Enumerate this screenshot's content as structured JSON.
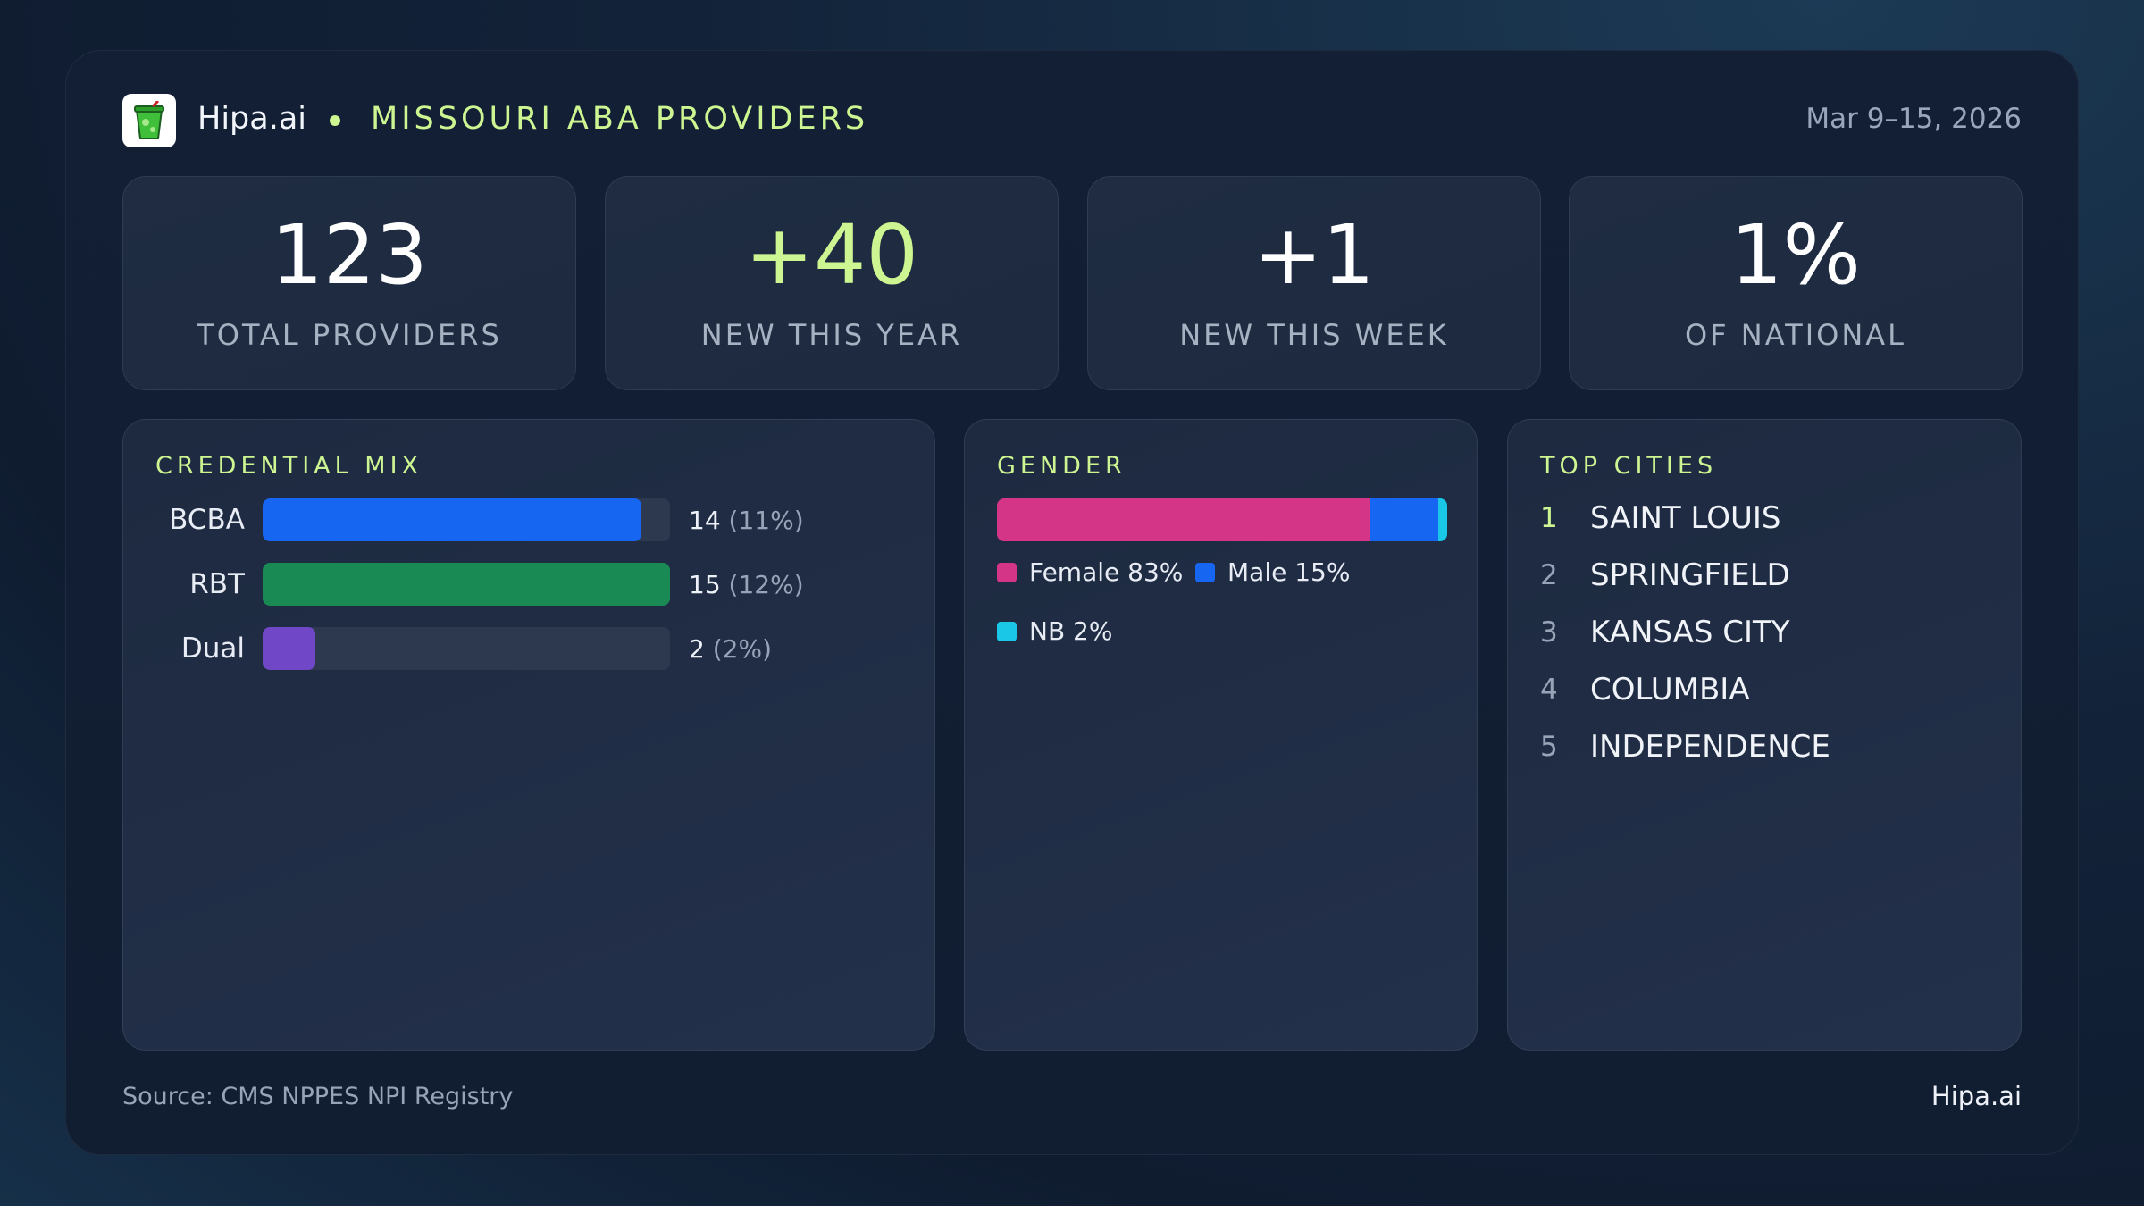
{
  "header": {
    "brand": "Hipa.ai",
    "title": "MISSOURI ABA PROVIDERS",
    "date_range": "Mar 9–15, 2026",
    "logo_icon": "drink-cup-icon"
  },
  "stats": [
    {
      "value": "123",
      "label": "TOTAL PROVIDERS",
      "accent": false
    },
    {
      "value": "+40",
      "label": "NEW THIS YEAR",
      "accent": true
    },
    {
      "value": "+1",
      "label": "NEW THIS WEEK",
      "accent": false
    },
    {
      "value": "1%",
      "label": "OF NATIONAL",
      "accent": false
    }
  ],
  "credential_mix": {
    "title": "CREDENTIAL MIX",
    "rows": [
      {
        "label": "BCBA",
        "count": "14",
        "pct": "(11%)",
        "fill_fraction": 0.93,
        "color": "#1766f2"
      },
      {
        "label": "RBT",
        "count": "15",
        "pct": "(12%)",
        "fill_fraction": 1.0,
        "color": "#1a8a54"
      },
      {
        "label": "Dual",
        "count": "2",
        "pct": "(2%)",
        "fill_fraction": 0.13,
        "color": "#7048c7"
      }
    ]
  },
  "gender": {
    "title": "GENDER",
    "segments": [
      {
        "name": "Female",
        "label": "Female 83%",
        "share": 83,
        "color": "#d43587"
      },
      {
        "name": "Male",
        "label": "Male 15%",
        "share": 15,
        "color": "#1766f2"
      },
      {
        "name": "NB",
        "label": "NB 2%",
        "share": 2,
        "color": "#1ac7e6"
      }
    ]
  },
  "top_cities": {
    "title": "TOP CITIES",
    "cities": [
      {
        "rank": "1",
        "name": "SAINT LOUIS"
      },
      {
        "rank": "2",
        "name": "SPRINGFIELD"
      },
      {
        "rank": "3",
        "name": "KANSAS CITY"
      },
      {
        "rank": "4",
        "name": "COLUMBIA"
      },
      {
        "rank": "5",
        "name": "INDEPENDENCE"
      }
    ]
  },
  "footer": {
    "source": "Source: CMS NPPES NPI Registry",
    "brand": "Hipa.ai"
  },
  "colors": {
    "accent": "#cdf591",
    "background": "#111d31"
  }
}
